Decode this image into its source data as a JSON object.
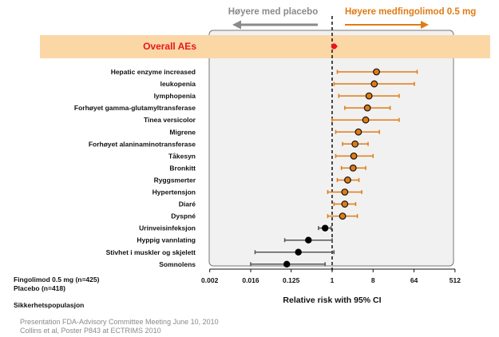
{
  "chart_data": {
    "type": "forest",
    "left_header": "Høyere med placebo",
    "right_header": "Høyere medfingolimod 0.5 mg",
    "overall_label": "Overall AEs",
    "overall": {
      "estimate": 1.1,
      "lower": 1.0,
      "upper": 1.3
    },
    "xlabel": "Relative risk with 95% CI",
    "xscale": "log2",
    "xticks": [
      "0.002",
      "0.016",
      "0.125",
      "1",
      "8",
      "64",
      "512"
    ],
    "xlim": [
      0.002,
      512
    ],
    "rows": [
      {
        "label": "Hepatic enzyme increased",
        "estimate": 9.5,
        "lower": 1.3,
        "upper": 75,
        "favors": "fingolimod"
      },
      {
        "label": "leukopenia",
        "estimate": 8.5,
        "lower": 1.1,
        "upper": 65,
        "favors": "fingolimod"
      },
      {
        "label": "lymphopenia",
        "estimate": 6.5,
        "lower": 1.4,
        "upper": 30,
        "favors": "fingolimod"
      },
      {
        "label": "Forhøyet gamma-glutamyltransferase",
        "estimate": 6.0,
        "lower": 1.9,
        "upper": 19,
        "favors": "fingolimod"
      },
      {
        "label": "Tinea versicolor",
        "estimate": 5.5,
        "lower": 1.0,
        "upper": 30,
        "favors": "fingolimod"
      },
      {
        "label": "Migrene",
        "estimate": 3.8,
        "lower": 1.2,
        "upper": 11,
        "favors": "fingolimod"
      },
      {
        "label": "Forhøyet alaninaminotransferase",
        "estimate": 3.2,
        "lower": 1.7,
        "upper": 6.2,
        "favors": "fingolimod"
      },
      {
        "label": "Tåkesyn",
        "estimate": 3.0,
        "lower": 1.2,
        "upper": 8,
        "favors": "fingolimod"
      },
      {
        "label": "Bronkitt",
        "estimate": 2.9,
        "lower": 1.6,
        "upper": 5.5,
        "favors": "fingolimod"
      },
      {
        "label": "Ryggsmerter",
        "estimate": 2.2,
        "lower": 1.3,
        "upper": 3.9,
        "favors": "fingolimod"
      },
      {
        "label": "Hypertensjon",
        "estimate": 1.9,
        "lower": 0.8,
        "upper": 4.5,
        "favors": "fingolimod"
      },
      {
        "label": "Diaré",
        "estimate": 1.9,
        "lower": 1.1,
        "upper": 3.3,
        "favors": "fingolimod"
      },
      {
        "label": "Dyspné",
        "estimate": 1.7,
        "lower": 0.8,
        "upper": 3.6,
        "favors": "fingolimod"
      },
      {
        "label": "Urinveisinfeksjon",
        "estimate": 0.7,
        "lower": 0.5,
        "upper": 0.95,
        "favors": "placebo"
      },
      {
        "label": "Hyppig vannlating",
        "estimate": 0.3,
        "lower": 0.09,
        "upper": 1.0,
        "favors": "placebo"
      },
      {
        "label": "Stivhet i muskler og skjelett",
        "estimate": 0.18,
        "lower": 0.02,
        "upper": 1.1,
        "favors": "placebo"
      },
      {
        "label": "Somnolens",
        "estimate": 0.1,
        "lower": 0.016,
        "upper": 0.7,
        "favors": "placebo"
      }
    ],
    "colors": {
      "fingolimod": "#e07b16",
      "placebo": "#555555",
      "overall": "#e8161b",
      "overall_band": "#fbd7a6",
      "placebo_header": "#8a8a8a",
      "panel": "#f1f1f1"
    }
  },
  "notes": {
    "fingolimod_n": "Fingolimod 0.5 mg (n=425)",
    "placebo_n": "Placebo (n=418)",
    "population": "Sikkerhetspopulasjon"
  },
  "sources": {
    "line1": "Presentation FDA-Advisory Committee Meeting June 10, 2010",
    "line2": "Collins et al, Poster P843 at ECTRIMS 2010"
  }
}
